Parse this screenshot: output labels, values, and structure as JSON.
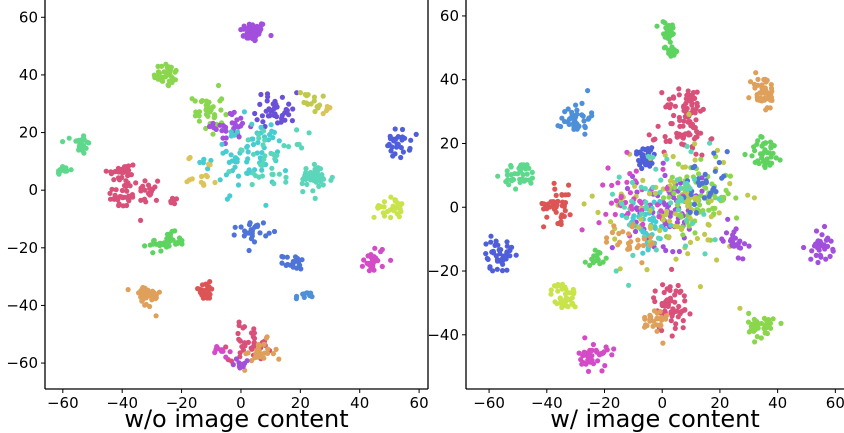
{
  "chart_data": [
    {
      "type": "scatter",
      "xlabel": "w/o image content",
      "xlim": [
        -66,
        63
      ],
      "ylim": [
        -69,
        66
      ],
      "xticks": [
        -60,
        -40,
        -20,
        0,
        20,
        40,
        60
      ],
      "yticks": [
        -60,
        -40,
        -20,
        0,
        20,
        40,
        60
      ],
      "clusters": [
        {
          "x": 4,
          "y": 55,
          "sx": 2.2,
          "sy": 1.8,
          "n": 45,
          "color": "#a14fdc"
        },
        {
          "x": -25,
          "y": 40,
          "sx": 2.2,
          "sy": 2.2,
          "n": 35,
          "color": "#8ad64d"
        },
        {
          "x": -54,
          "y": 16,
          "sx": 1.5,
          "sy": 1.8,
          "n": 25,
          "color": "#5ed88c"
        },
        {
          "x": -60,
          "y": 7,
          "sx": 1.2,
          "sy": 0.8,
          "n": 12,
          "color": "#5ed88c"
        },
        {
          "x": -40,
          "y": 6,
          "sx": 2.5,
          "sy": 2,
          "n": 30,
          "color": "#d9507a"
        },
        {
          "x": -40,
          "y": -2,
          "sx": 2.5,
          "sy": 2.5,
          "n": 30,
          "color": "#d9507a"
        },
        {
          "x": -31,
          "y": 0,
          "sx": 1.8,
          "sy": 2.5,
          "n": 20,
          "color": "#d9507a"
        },
        {
          "x": -23,
          "y": -4,
          "sx": 0.8,
          "sy": 0.8,
          "n": 6,
          "color": "#d9507a"
        },
        {
          "x": -25,
          "y": -18,
          "sx": 3,
          "sy": 1.6,
          "n": 40,
          "color": "#5fd35f"
        },
        {
          "x": -11,
          "y": 27,
          "sx": 2.5,
          "sy": 4,
          "n": 35,
          "color": "#8ad64d"
        },
        {
          "x": -3,
          "y": 22,
          "sx": 3,
          "sy": 2.5,
          "n": 30,
          "color": "#a14fdc"
        },
        {
          "x": 12,
          "y": 28,
          "sx": 3.5,
          "sy": 3,
          "n": 40,
          "color": "#6a4fd8"
        },
        {
          "x": 23,
          "y": 31,
          "sx": 2,
          "sy": 2,
          "n": 15,
          "color": "#c2c84b"
        },
        {
          "x": 29,
          "y": 28,
          "sx": 0.8,
          "sy": 0.8,
          "n": 6,
          "color": "#dcc45a"
        },
        {
          "x": 2,
          "y": 12,
          "sx": 7,
          "sy": 6,
          "n": 70,
          "color": "#47ccd2"
        },
        {
          "x": 10,
          "y": 10,
          "sx": 6,
          "sy": 5,
          "n": 40,
          "color": "#5bd6ba"
        },
        {
          "x": 25,
          "y": 4,
          "sx": 3,
          "sy": 2.5,
          "n": 40,
          "color": "#5bd6ba"
        },
        {
          "x": -13,
          "y": 6,
          "sx": 2.5,
          "sy": 3,
          "n": 15,
          "color": "#dcc45a"
        },
        {
          "x": 53,
          "y": 16,
          "sx": 2,
          "sy": 2.5,
          "n": 30,
          "color": "#4f5ed9"
        },
        {
          "x": 50,
          "y": -6,
          "sx": 2.5,
          "sy": 1.8,
          "n": 30,
          "color": "#c9e34a"
        },
        {
          "x": 45,
          "y": -24,
          "sx": 1.8,
          "sy": 2.5,
          "n": 25,
          "color": "#d44bc7"
        },
        {
          "x": 4,
          "y": -14,
          "sx": 2.5,
          "sy": 1.8,
          "n": 25,
          "color": "#4f74d8"
        },
        {
          "x": 18,
          "y": -25,
          "sx": 2,
          "sy": 1.2,
          "n": 20,
          "color": "#4f74d8"
        },
        {
          "x": 21,
          "y": -37,
          "sx": 1.2,
          "sy": 0.8,
          "n": 10,
          "color": "#4d8fd8"
        },
        {
          "x": -32,
          "y": -37,
          "sx": 2.5,
          "sy": 2.2,
          "n": 35,
          "color": "#dea05a"
        },
        {
          "x": -12,
          "y": -35,
          "sx": 2,
          "sy": 1.5,
          "n": 25,
          "color": "#dc5454"
        },
        {
          "x": 3,
          "y": -53,
          "sx": 3.5,
          "sy": 3,
          "n": 40,
          "color": "#d9507a"
        },
        {
          "x": 6,
          "y": -57,
          "sx": 3,
          "sy": 2.5,
          "n": 25,
          "color": "#dea05a"
        },
        {
          "x": -7,
          "y": -56,
          "sx": 1.5,
          "sy": 1.2,
          "n": 10,
          "color": "#d44bc7"
        },
        {
          "x": 0,
          "y": -60,
          "sx": 1.2,
          "sy": 1.2,
          "n": 8,
          "color": "#a14fdc"
        }
      ]
    },
    {
      "type": "scatter",
      "xlabel": "w/ image content",
      "xlim": [
        -68,
        63
      ],
      "ylim": [
        -57,
        65
      ],
      "xticks": [
        -60,
        -40,
        -20,
        0,
        20,
        40,
        60
      ],
      "yticks": [
        -40,
        -20,
        0,
        20,
        40,
        60
      ],
      "clusters": [
        {
          "x": 2,
          "y": 55,
          "sx": 1.5,
          "sy": 1.8,
          "n": 30,
          "color": "#5fd35f"
        },
        {
          "x": 3,
          "y": 49,
          "sx": 1.2,
          "sy": 1.0,
          "n": 14,
          "color": "#5fd35f"
        },
        {
          "x": -30,
          "y": 28,
          "sx": 2.5,
          "sy": 2.5,
          "n": 40,
          "color": "#4d8fd8"
        },
        {
          "x": 9,
          "y": 32,
          "sx": 4,
          "sy": 3,
          "n": 50,
          "color": "#d9507a"
        },
        {
          "x": 8,
          "y": 22,
          "sx": 4,
          "sy": 3,
          "n": 45,
          "color": "#d9507a"
        },
        {
          "x": 35,
          "y": 36,
          "sx": 2.2,
          "sy": 3,
          "n": 45,
          "color": "#dea05a"
        },
        {
          "x": 36,
          "y": 17,
          "sx": 3,
          "sy": 2.5,
          "n": 40,
          "color": "#5fd35f"
        },
        {
          "x": -49,
          "y": 10,
          "sx": 3,
          "sy": 2,
          "n": 40,
          "color": "#5ed88c"
        },
        {
          "x": -6,
          "y": 16,
          "sx": 2,
          "sy": 2,
          "n": 30,
          "color": "#4f5ed9"
        },
        {
          "x": -36,
          "y": 1,
          "sx": 2.5,
          "sy": 3,
          "n": 40,
          "color": "#dc5454"
        },
        {
          "x": 2,
          "y": 0,
          "sx": 6,
          "sy": 6,
          "n": 80,
          "color": "#a14fdc"
        },
        {
          "x": 12,
          "y": 3,
          "sx": 6,
          "sy": 5,
          "n": 90,
          "color": "#8ad64d"
        },
        {
          "x": -5,
          "y": -5,
          "sx": 4,
          "sy": 4,
          "n": 50,
          "color": "#47ccd2"
        },
        {
          "x": 2,
          "y": 0,
          "sx": 12,
          "sy": 11,
          "n": 90,
          "color": "#c2c84b"
        },
        {
          "x": -10,
          "y": 4,
          "sx": 6,
          "sy": 6,
          "n": 40,
          "color": "#d44bc7"
        },
        {
          "x": 15,
          "y": 5,
          "sx": 5,
          "sy": 5,
          "n": 30,
          "color": "#4f74d8"
        },
        {
          "x": 0,
          "y": 2,
          "sx": 10,
          "sy": 10,
          "n": 50,
          "color": "#5bd6ba"
        },
        {
          "x": -10,
          "y": -10,
          "sx": 5,
          "sy": 3,
          "n": 25,
          "color": "#dea05a"
        },
        {
          "x": -57,
          "y": -15,
          "sx": 2.5,
          "sy": 2.5,
          "n": 40,
          "color": "#4f5ed9"
        },
        {
          "x": 55,
          "y": -12,
          "sx": 2,
          "sy": 2.5,
          "n": 35,
          "color": "#a14fdc"
        },
        {
          "x": 25,
          "y": -10,
          "sx": 2,
          "sy": 2.5,
          "n": 25,
          "color": "#a14fdc"
        },
        {
          "x": -34,
          "y": -28,
          "sx": 2.2,
          "sy": 2.2,
          "n": 40,
          "color": "#c9e34a"
        },
        {
          "x": 3,
          "y": -31,
          "sx": 3,
          "sy": 4,
          "n": 60,
          "color": "#d9507a"
        },
        {
          "x": -3,
          "y": -36,
          "sx": 2.5,
          "sy": 2.5,
          "n": 30,
          "color": "#dea05a"
        },
        {
          "x": 35,
          "y": -37,
          "sx": 2.5,
          "sy": 2,
          "n": 40,
          "color": "#8ad64d"
        },
        {
          "x": -24,
          "y": -47,
          "sx": 2.5,
          "sy": 2.2,
          "n": 40,
          "color": "#d44bc7"
        },
        {
          "x": -22,
          "y": -16,
          "sx": 2,
          "sy": 1.5,
          "n": 15,
          "color": "#5fd35f"
        }
      ]
    }
  ]
}
